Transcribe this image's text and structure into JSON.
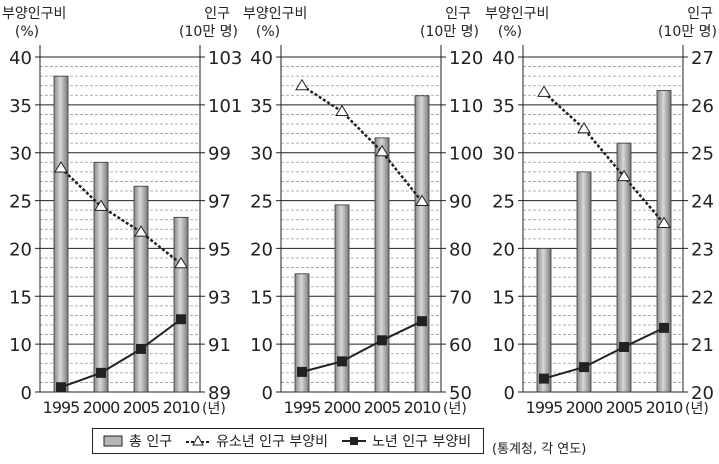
{
  "chart_data": [
    {
      "type": "bar+line",
      "categories": [
        "1995",
        "2000",
        "2005",
        "2010"
      ],
      "x_unit": "(년)",
      "ylabel_left": "부양인구비",
      "ylabel_left_unit": "(%)",
      "ylabel_right": "인구",
      "ylabel_right_unit": "(10만 명)",
      "left_ticks": [
        "40",
        "35",
        "30",
        "25",
        "20",
        "15",
        "10",
        "0"
      ],
      "right_ticks": [
        "103",
        "101",
        "99",
        "97",
        "95",
        "93",
        "91",
        "89"
      ],
      "ylim_left": [
        5,
        40
      ],
      "ylim_right": [
        89,
        103
      ],
      "grid": true,
      "series": [
        {
          "name": "총 인구",
          "kind": "bar",
          "axis": "right",
          "values": [
            102.2,
            98.6,
            97.6,
            96.3
          ]
        },
        {
          "name": "유소년 인구 부양비",
          "kind": "line-dashed-triangle",
          "axis": "left",
          "values": [
            28.4,
            24.4,
            21.7,
            18.4
          ]
        },
        {
          "name": "노년 인구 부양비",
          "kind": "line-square",
          "axis": "left",
          "values": [
            5.5,
            7.0,
            9.5,
            12.6
          ]
        }
      ]
    },
    {
      "type": "bar+line",
      "categories": [
        "1995",
        "2000",
        "2005",
        "2010"
      ],
      "x_unit": "(년)",
      "ylabel_left": "부양인구비",
      "ylabel_left_unit": "(%)",
      "ylabel_right": "인구",
      "ylabel_right_unit": "(10만 명)",
      "left_ticks": [
        "40",
        "35",
        "30",
        "25",
        "20",
        "15",
        "10",
        "0"
      ],
      "right_ticks": [
        "120",
        "110",
        "100",
        "90",
        "80",
        "70",
        "60",
        "50"
      ],
      "ylim_left": [
        5,
        40
      ],
      "ylim_right": [
        50,
        120
      ],
      "grid": true,
      "series": [
        {
          "name": "총 인구",
          "kind": "bar",
          "axis": "right",
          "values": [
            74.7,
            89.1,
            103.1,
            111.9
          ]
        },
        {
          "name": "유소년 인구 부양비",
          "kind": "line-dashed-triangle",
          "axis": "left",
          "values": [
            37.0,
            34.3,
            30.1,
            24.9
          ]
        },
        {
          "name": "노년 인구 부양비",
          "kind": "line-square",
          "axis": "left",
          "values": [
            7.1,
            8.2,
            10.4,
            12.4
          ]
        }
      ]
    },
    {
      "type": "bar+line",
      "categories": [
        "1995",
        "2000",
        "2005",
        "2010"
      ],
      "x_unit": "(년)",
      "ylabel_left": "부양인구비",
      "ylabel_left_unit": "(%)",
      "ylabel_right": "인구",
      "ylabel_right_unit": "(10만 명)",
      "left_ticks": [
        "40",
        "35",
        "30",
        "25",
        "20",
        "15",
        "10",
        "0"
      ],
      "right_ticks": [
        "27",
        "26",
        "25",
        "24",
        "23",
        "22",
        "21",
        "20"
      ],
      "ylim_left": [
        5,
        40
      ],
      "ylim_right": [
        20,
        27
      ],
      "grid": true,
      "series": [
        {
          "name": "총 인구",
          "kind": "bar",
          "axis": "right",
          "values": [
            23.0,
            24.6,
            25.2,
            26.3
          ]
        },
        {
          "name": "유소년 인구 부양비",
          "kind": "line-dashed-triangle",
          "axis": "left",
          "values": [
            36.3,
            32.5,
            27.5,
            22.6
          ]
        },
        {
          "name": "노년 인구 부양비",
          "kind": "line-square",
          "axis": "left",
          "values": [
            6.4,
            7.6,
            9.7,
            11.7
          ]
        }
      ]
    }
  ],
  "legend": {
    "items": [
      "총 인구",
      "유소년 인구 부양비",
      "노년 인구 부양비"
    ],
    "position": "bottom"
  },
  "source": "(통계청, 각 연도)"
}
